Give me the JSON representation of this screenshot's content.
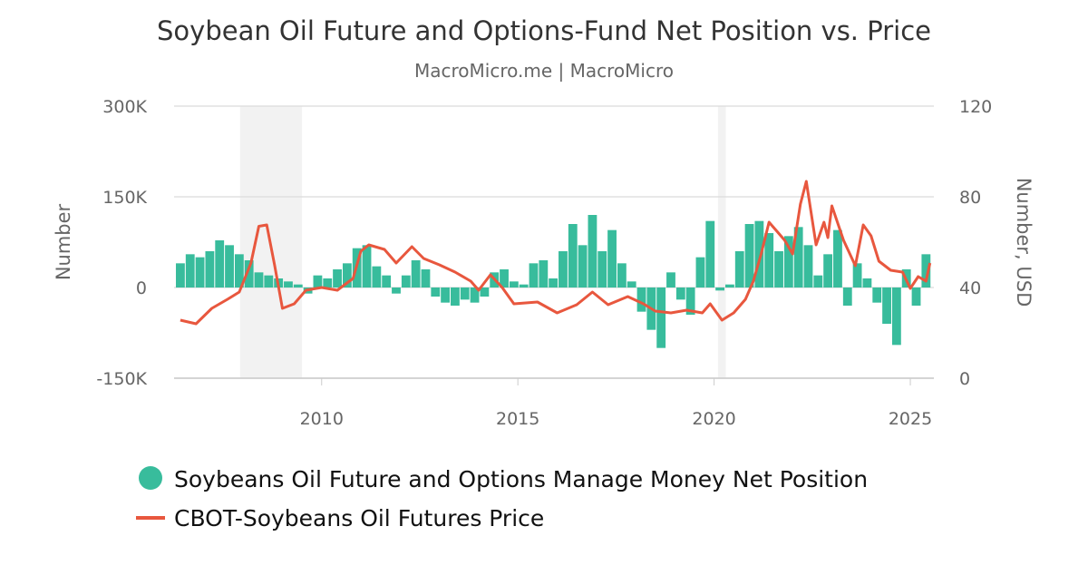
{
  "chart_data": {
    "type": "bar+line",
    "title": "Soybean Oil Future and Options-Fund Net Position vs. Price",
    "subtitle": "MacroMicro.me | MacroMicro",
    "ylabel_left": "Number",
    "ylabel_right": "Number, USD",
    "ylim_left": [
      -150000,
      300000
    ],
    "ylim_right": [
      0,
      120
    ],
    "xlim": [
      2006.24,
      2025.6
    ],
    "left_ticks": [
      {
        "v": -150000,
        "label": "-150K"
      },
      {
        "v": 0,
        "label": "0"
      },
      {
        "v": 150000,
        "label": "150K"
      },
      {
        "v": 300000,
        "label": "300K"
      }
    ],
    "right_ticks": [
      {
        "v": 0,
        "label": "0"
      },
      {
        "v": 40,
        "label": "40"
      },
      {
        "v": 80,
        "label": "80"
      },
      {
        "v": 120,
        "label": "120"
      }
    ],
    "x_ticks": [
      {
        "v": 2010,
        "label": "2010"
      },
      {
        "v": 2015,
        "label": "2015"
      },
      {
        "v": 2020,
        "label": "2020"
      },
      {
        "v": 2025,
        "label": "2025"
      }
    ],
    "grid": "horizontal",
    "legend_position": "bottom",
    "shaded_periods": [
      [
        2007.92,
        2009.5
      ],
      [
        2020.1,
        2020.3
      ]
    ],
    "colors": {
      "bars": "#38bc9c",
      "line": "#e8573e",
      "shade": "#f2f2f2",
      "grid": "#e0e0e0"
    },
    "series": [
      {
        "name": "Soybeans Oil Future and Options Manage Money Net Position",
        "kind": "bar",
        "axis": "left",
        "x": [
          2006.4,
          2006.65,
          2006.9,
          2007.15,
          2007.4,
          2007.65,
          2007.9,
          2008.15,
          2008.4,
          2008.65,
          2008.9,
          2009.15,
          2009.4,
          2009.65,
          2009.9,
          2010.15,
          2010.4,
          2010.65,
          2010.9,
          2011.15,
          2011.4,
          2011.65,
          2011.9,
          2012.15,
          2012.4,
          2012.65,
          2012.9,
          2013.15,
          2013.4,
          2013.65,
          2013.9,
          2014.15,
          2014.4,
          2014.65,
          2014.9,
          2015.15,
          2015.4,
          2015.65,
          2015.9,
          2016.15,
          2016.4,
          2016.65,
          2016.9,
          2017.15,
          2017.4,
          2017.65,
          2017.9,
          2018.15,
          2018.4,
          2018.65,
          2018.9,
          2019.15,
          2019.4,
          2019.65,
          2019.9,
          2020.15,
          2020.4,
          2020.65,
          2020.9,
          2021.15,
          2021.4,
          2021.65,
          2021.9,
          2022.15,
          2022.4,
          2022.65,
          2022.9,
          2023.15,
          2023.4,
          2023.65,
          2023.9,
          2024.15,
          2024.4,
          2024.65,
          2024.9,
          2025.15,
          2025.4
        ],
        "values": [
          40000,
          55000,
          50000,
          60000,
          78000,
          70000,
          55000,
          45000,
          25000,
          20000,
          15000,
          10000,
          5000,
          -10000,
          20000,
          15000,
          30000,
          40000,
          65000,
          70000,
          35000,
          20000,
          -10000,
          20000,
          45000,
          30000,
          -15000,
          -25000,
          -30000,
          -20000,
          -25000,
          -15000,
          25000,
          30000,
          10000,
          5000,
          40000,
          45000,
          15000,
          60000,
          105000,
          70000,
          120000,
          60000,
          95000,
          40000,
          10000,
          -40000,
          -70000,
          -100000,
          25000,
          -20000,
          -45000,
          50000,
          110000,
          -5000,
          5000,
          60000,
          105000,
          110000,
          90000,
          60000,
          85000,
          100000,
          70000,
          20000,
          55000,
          95000,
          -30000,
          40000,
          15000,
          -25000,
          -60000,
          -95000,
          30000,
          -30000,
          55000
        ]
      },
      {
        "name": "CBOT-Soybeans Oil Futures Price",
        "kind": "line",
        "axis": "right",
        "x": [
          2006.4,
          2006.8,
          2007.2,
          2007.6,
          2007.9,
          2008.2,
          2008.4,
          2008.6,
          2008.8,
          2009.0,
          2009.3,
          2009.6,
          2010.0,
          2010.4,
          2010.8,
          2011.0,
          2011.2,
          2011.6,
          2011.9,
          2012.3,
          2012.6,
          2013.0,
          2013.4,
          2013.8,
          2014.0,
          2014.3,
          2014.6,
          2014.9,
          2015.5,
          2016.0,
          2016.5,
          2016.9,
          2017.3,
          2017.8,
          2018.2,
          2018.5,
          2018.9,
          2019.3,
          2019.7,
          2019.9,
          2020.2,
          2020.5,
          2020.8,
          2021.0,
          2021.2,
          2021.4,
          2021.6,
          2021.8,
          2022.0,
          2022.2,
          2022.35,
          2022.6,
          2022.8,
          2022.9,
          2023.0,
          2023.3,
          2023.6,
          2023.8,
          2024.0,
          2024.2,
          2024.5,
          2024.8,
          2025.0,
          2025.2,
          2025.4,
          2025.5
        ],
        "values": [
          25.6,
          24,
          30.8,
          34.8,
          38,
          50.8,
          67,
          67.6,
          50,
          30.8,
          32.8,
          38.8,
          40,
          38.8,
          44,
          56,
          58.8,
          56.8,
          50.8,
          58,
          52.8,
          50,
          46.8,
          42.8,
          38.8,
          45.6,
          40,
          32.8,
          33.6,
          28.8,
          32.4,
          38,
          32.4,
          36,
          32.8,
          29.6,
          28.8,
          30,
          28.8,
          32.8,
          25.6,
          28.8,
          34.8,
          42.8,
          54.8,
          68.8,
          64.8,
          60.8,
          54.8,
          76.8,
          86.8,
          58.8,
          68.8,
          62,
          76,
          60.8,
          49.6,
          67.6,
          62.8,
          51.6,
          47.6,
          46.8,
          39.6,
          44.8,
          42.8,
          50.8
        ]
      }
    ]
  }
}
